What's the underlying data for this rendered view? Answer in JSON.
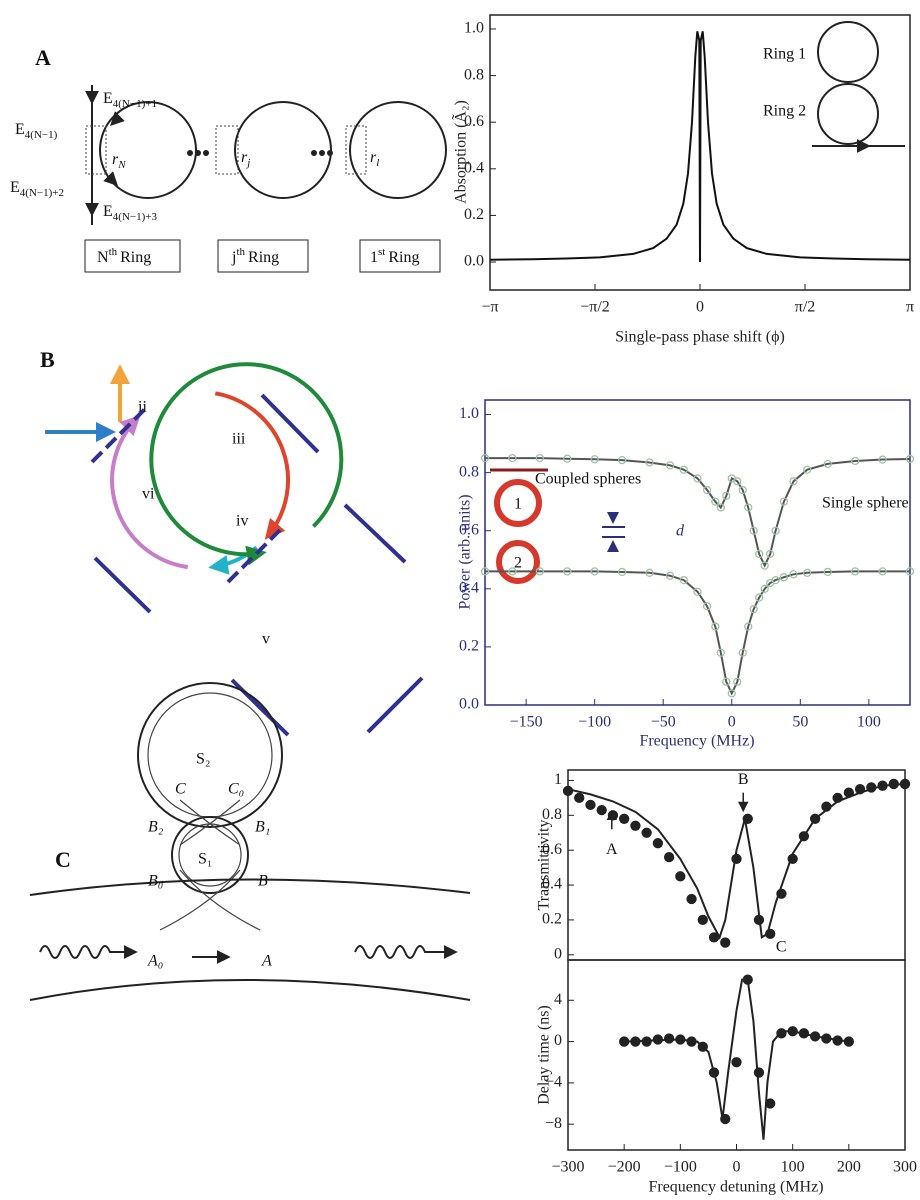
{
  "panel_a": {
    "label": "A",
    "e_labels": [
      {
        "base": "E",
        "sub": "4(N−1)"
      },
      {
        "base": "E",
        "sub": "4(N−1)+1"
      },
      {
        "base": "E",
        "sub": "4(N−1)+2"
      },
      {
        "base": "E",
        "sub": "4(N−1)+3"
      }
    ],
    "ring_r": [
      {
        "base": "r",
        "sub": "N"
      },
      {
        "base": "r",
        "sub": "j"
      },
      {
        "base": "r",
        "sub": "l"
      }
    ],
    "ring_names": [
      {
        "base": "N",
        "sup": "th",
        "rest": "Ring"
      },
      {
        "base": "j",
        "sup": "th",
        "rest": "Ring"
      },
      {
        "base": "1",
        "sup": "st",
        "rest": "Ring"
      }
    ]
  },
  "panel_b": {
    "label": "B",
    "arc_labels": [
      "ii",
      "iii",
      "iv",
      "v",
      "vi"
    ]
  },
  "panel_c": {
    "label": "C",
    "labels": [
      "S₂",
      "C",
      "C₀",
      "B₂",
      "B₁",
      "S₁",
      "B₀",
      "B",
      "A₀",
      "A"
    ]
  },
  "chart_data": [
    {
      "type": "line",
      "x": [
        -3.1416,
        -2.5,
        -2,
        -1.5,
        -1,
        -0.7,
        -0.5,
        -0.35,
        -0.25,
        -0.18,
        -0.12,
        -0.07,
        -0.04,
        -0.01,
        0,
        0.01,
        0.04,
        0.07,
        0.12,
        0.18,
        0.25,
        0.35,
        0.5,
        0.7,
        1,
        1.5,
        2,
        2.5,
        3.1416
      ],
      "values": [
        0.01,
        0.012,
        0.015,
        0.02,
        0.035,
        0.06,
        0.1,
        0.16,
        0.25,
        0.38,
        0.6,
        0.88,
        0.99,
        0.95,
        0,
        0.95,
        0.99,
        0.88,
        0.6,
        0.38,
        0.25,
        0.16,
        0.1,
        0.06,
        0.035,
        0.02,
        0.015,
        0.012,
        0.01
      ],
      "color": "#111",
      "style": "line",
      "xlim": [
        -3.1416,
        3.1416
      ],
      "xticks": [
        {
          "value": -3.1416,
          "label": "−π"
        },
        {
          "value": -1.5708,
          "label": "−π/2"
        },
        0,
        {
          "value": 1.5708,
          "label": "π/2"
        },
        {
          "value": 3.1416,
          "label": "π"
        }
      ],
      "ylim": [
        -0.12,
        1.06
      ],
      "yticks": [
        {
          "value": 0,
          "label": "0.0"
        },
        {
          "value": 0.2,
          "label": "0.2"
        },
        {
          "value": 0.4,
          "label": "0.4"
        },
        {
          "value": 0.6,
          "label": "0.6"
        },
        {
          "value": 0.8,
          "label": "0.8"
        },
        {
          "value": 1,
          "label": "1.0"
        }
      ],
      "xlabel": "Single-pass phase shift (ϕ)",
      "ylabel": "Absorption (Ã₂)",
      "inset_labels": [
        "Ring 1",
        "Ring 2"
      ]
    },
    {
      "type": "line",
      "x": [
        -180,
        -160,
        -140,
        -120,
        -100,
        -80,
        -60,
        -45,
        -35,
        -25,
        -18,
        -12,
        -8,
        -4,
        0,
        4,
        8,
        12,
        16,
        20,
        24,
        28,
        32,
        38,
        45,
        55,
        70,
        90,
        110,
        130
      ],
      "series": [
        {
          "name": "Coupled spheres",
          "color": "#9cc3a4",
          "line_color": "#555",
          "style": "line+markers",
          "values": [
            0.85,
            0.85,
            0.85,
            0.848,
            0.846,
            0.843,
            0.835,
            0.825,
            0.81,
            0.78,
            0.74,
            0.7,
            0.68,
            0.72,
            0.78,
            0.77,
            0.74,
            0.68,
            0.6,
            0.52,
            0.48,
            0.52,
            0.6,
            0.7,
            0.77,
            0.81,
            0.83,
            0.84,
            0.845,
            0.847
          ]
        },
        {
          "name": "Single sphere",
          "color": "#9cc3a4",
          "line_color": "#555",
          "style": "line+markers",
          "values": [
            0.46,
            0.46,
            0.46,
            0.46,
            0.46,
            0.458,
            0.455,
            0.445,
            0.43,
            0.39,
            0.34,
            0.27,
            0.18,
            0.08,
            0.04,
            0.08,
            0.18,
            0.27,
            0.33,
            0.37,
            0.4,
            0.42,
            0.43,
            0.44,
            0.45,
            0.455,
            0.458,
            0.46,
            0.46,
            0.46
          ]
        }
      ],
      "xlim": [
        -180,
        130
      ],
      "xticks": [
        {
          "value": -150,
          "label": "−150"
        },
        {
          "value": -100,
          "label": "−100"
        },
        {
          "value": -50,
          "label": "−50"
        },
        0,
        50,
        100
      ],
      "ylim": [
        0,
        1.05
      ],
      "yticks": [
        {
          "value": 0,
          "label": "0.0"
        },
        {
          "value": 0.2,
          "label": "0.2"
        },
        {
          "value": 0.4,
          "label": "0.4"
        },
        {
          "value": 0.6,
          "label": "0.6"
        },
        {
          "value": 0.8,
          "label": "0.8"
        },
        {
          "value": 1,
          "label": "1.0"
        }
      ],
      "axis_color": "#2b2f7a",
      "xlabel": "Frequency (MHz)",
      "ylabel": "Power (arb. units)",
      "inset_labels": [
        "1",
        "2",
        "d"
      ]
    },
    {
      "type": "line",
      "series": [
        {
          "color": "#222",
          "style": "line",
          "x": [
            -300,
            -260,
            -220,
            -180,
            -140,
            -100,
            -70,
            -50,
            -30,
            -20,
            0,
            15,
            30,
            45,
            55,
            70,
            100,
            140,
            180,
            220,
            260,
            300
          ],
          "values": [
            0.95,
            0.92,
            0.88,
            0.82,
            0.72,
            0.55,
            0.38,
            0.22,
            0.1,
            0.2,
            0.6,
            0.78,
            0.5,
            0.1,
            0.12,
            0.3,
            0.58,
            0.78,
            0.88,
            0.93,
            0.97,
            0.98
          ]
        },
        {
          "color": "#222",
          "style": "markers",
          "x": [
            -300,
            -280,
            -260,
            -240,
            -220,
            -200,
            -180,
            -160,
            -140,
            -120,
            -100,
            -80,
            -60,
            -40,
            -20,
            0,
            20,
            40,
            60,
            80,
            100,
            120,
            140,
            160,
            180,
            200,
            220,
            240,
            260,
            280,
            300
          ],
          "values": [
            0.94,
            0.9,
            0.86,
            0.83,
            0.8,
            0.78,
            0.74,
            0.7,
            0.64,
            0.56,
            0.45,
            0.32,
            0.2,
            0.1,
            0.07,
            0.55,
            0.78,
            0.2,
            0.12,
            0.35,
            0.55,
            0.68,
            0.78,
            0.85,
            0.9,
            0.93,
            0.95,
            0.96,
            0.97,
            0.98,
            0.98
          ]
        }
      ],
      "xlim": [
        -300,
        300
      ],
      "ylim": [
        -0.03,
        1.06
      ],
      "yticks": [
        0,
        0.2,
        0.4,
        0.6,
        0.8,
        1
      ],
      "ylabel": "Transmittivity",
      "annotations": [
        "A",
        "B",
        "C"
      ]
    },
    {
      "type": "line",
      "series": [
        {
          "color": "#222",
          "style": "line",
          "x": [
            -200,
            -150,
            -100,
            -70,
            -50,
            -35,
            -25,
            -15,
            0,
            10,
            20,
            30,
            40,
            48,
            55,
            65,
            80,
            100,
            140,
            200
          ],
          "values": [
            0,
            0.1,
            0.2,
            0,
            -1,
            -4,
            -7.5,
            -3,
            3,
            6,
            6,
            2,
            -5,
            -9.5,
            -4,
            0,
            1,
            1,
            0.5,
            0
          ]
        },
        {
          "color": "#222",
          "style": "markers",
          "x": [
            -200,
            -180,
            -160,
            -140,
            -120,
            -100,
            -80,
            -60,
            -40,
            -20,
            0,
            20,
            40,
            60,
            80,
            100,
            120,
            140,
            160,
            180,
            200
          ],
          "values": [
            0,
            0,
            0,
            0.2,
            0.3,
            0.2,
            0,
            -0.5,
            -3,
            -7.5,
            -2,
            6,
            -3,
            -6,
            0.8,
            1,
            0.8,
            0.5,
            0.3,
            0.1,
            0
          ]
        }
      ],
      "xlim": [
        -300,
        300
      ],
      "xticks": [
        {
          "value": -300,
          "label": "−300"
        },
        {
          "value": -200,
          "label": "−200"
        },
        {
          "value": -100,
          "label": "−100"
        },
        0,
        100,
        200,
        300
      ],
      "ylim": [
        -10.5,
        7.9
      ],
      "yticks": [
        {
          "value": -8,
          "label": "−8"
        },
        {
          "value": -4,
          "label": "−4"
        },
        0,
        4
      ],
      "xlabel": "Frequency detuning (MHz)",
      "ylabel": "Delay time (ns)"
    }
  ]
}
